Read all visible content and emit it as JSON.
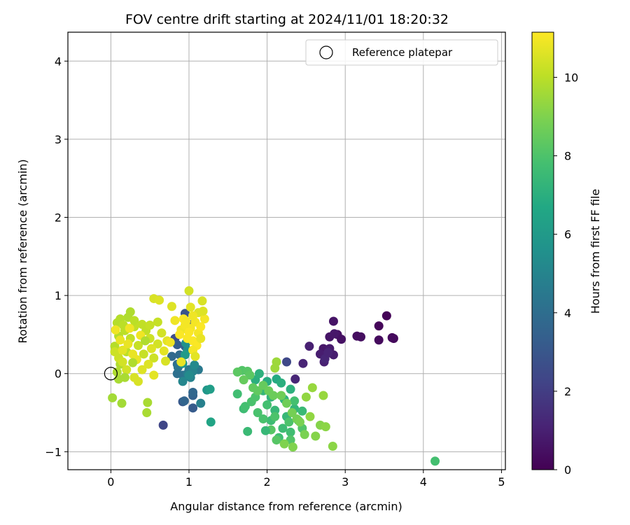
{
  "chart_data": {
    "type": "scatter",
    "title": "FOV centre drift starting at 2024/11/01 18:20:32",
    "xlabel": "Angular distance from reference (arcmin)",
    "ylabel": "Rotation from reference (arcmin)",
    "xlim": [
      -0.55,
      5.05
    ],
    "ylim": [
      -1.23,
      4.37
    ],
    "xticks": [
      0,
      1,
      2,
      3,
      4,
      5
    ],
    "yticks": [
      -1,
      0,
      1,
      2,
      3,
      4
    ],
    "xtick_labels": [
      "0",
      "1",
      "2",
      "3",
      "4",
      "5"
    ],
    "ytick_labels": [
      "−1",
      "0",
      "1",
      "2",
      "3",
      "4"
    ],
    "grid": true,
    "legend": {
      "position": "top-right",
      "entries": [
        "Reference platepar"
      ]
    },
    "reference_point": {
      "x": 0,
      "y": 0,
      "label": "Reference platepar"
    },
    "colorbar": {
      "label": "Hours from first FF file",
      "colormap": "viridis",
      "min": 0,
      "max": 11.15,
      "ticks": [
        0,
        2,
        4,
        6,
        8,
        10
      ],
      "tick_labels": [
        "0",
        "2",
        "4",
        "6",
        "8",
        "10"
      ]
    },
    "points": [
      {
        "x": 3.53,
        "y": 0.74,
        "c": 0.1
      },
      {
        "x": 3.43,
        "y": 0.61,
        "c": 0.2
      },
      {
        "x": 3.62,
        "y": 0.45,
        "c": 0.2
      },
      {
        "x": 3.43,
        "y": 0.43,
        "c": 0.3
      },
      {
        "x": 3.6,
        "y": 0.46,
        "c": 0.3
      },
      {
        "x": 3.15,
        "y": 0.48,
        "c": 0.4
      },
      {
        "x": 3.2,
        "y": 0.47,
        "c": 0.4
      },
      {
        "x": 2.95,
        "y": 0.44,
        "c": 0.5
      },
      {
        "x": 2.9,
        "y": 0.5,
        "c": 0.5
      },
      {
        "x": 2.85,
        "y": 0.67,
        "c": 0.6
      },
      {
        "x": 2.8,
        "y": 0.47,
        "c": 0.6
      },
      {
        "x": 2.86,
        "y": 0.51,
        "c": 0.7
      },
      {
        "x": 2.72,
        "y": 0.32,
        "c": 0.7
      },
      {
        "x": 2.8,
        "y": 0.32,
        "c": 0.8
      },
      {
        "x": 2.75,
        "y": 0.24,
        "c": 0.8
      },
      {
        "x": 2.68,
        "y": 0.25,
        "c": 0.9
      },
      {
        "x": 2.85,
        "y": 0.24,
        "c": 0.9
      },
      {
        "x": 2.73,
        "y": 0.15,
        "c": 1.0
      },
      {
        "x": 2.54,
        "y": 0.35,
        "c": 1.0
      },
      {
        "x": 2.46,
        "y": 0.13,
        "c": 1.1
      },
      {
        "x": 2.36,
        "y": -0.07,
        "c": 1.2
      },
      {
        "x": 2.74,
        "y": 0.19,
        "c": 1.2
      },
      {
        "x": 2.78,
        "y": 0.27,
        "c": 1.1
      },
      {
        "x": 0.67,
        "y": -0.66,
        "c": 2.3
      },
      {
        "x": 2.25,
        "y": 0.15,
        "c": 2.4
      },
      {
        "x": 0.82,
        "y": 0.45,
        "c": 2.6
      },
      {
        "x": 0.95,
        "y": 0.77,
        "c": 2.9
      },
      {
        "x": 1.0,
        "y": 0.63,
        "c": 3.0
      },
      {
        "x": 0.92,
        "y": -0.36,
        "c": 3.1
      },
      {
        "x": 1.05,
        "y": -0.44,
        "c": 3.2
      },
      {
        "x": 0.85,
        "y": 0.37,
        "c": 3.3
      },
      {
        "x": 0.95,
        "y": 0.35,
        "c": 3.4
      },
      {
        "x": 1.05,
        "y": -0.28,
        "c": 3.5
      },
      {
        "x": 0.94,
        "y": -0.35,
        "c": 3.6
      },
      {
        "x": 1.05,
        "y": -0.24,
        "c": 3.7
      },
      {
        "x": 0.78,
        "y": 0.22,
        "c": 3.8
      },
      {
        "x": 0.88,
        "y": 0.24,
        "c": 3.9
      },
      {
        "x": 0.85,
        "y": 0.12,
        "c": 4.0
      },
      {
        "x": 0.85,
        "y": 0.0,
        "c": 4.1
      },
      {
        "x": 0.92,
        "y": -0.02,
        "c": 4.2
      },
      {
        "x": 0.86,
        "y": 0.08,
        "c": 4.3
      },
      {
        "x": 1.0,
        "y": 0.05,
        "c": 4.4
      },
      {
        "x": 1.12,
        "y": 0.05,
        "c": 4.5
      },
      {
        "x": 0.98,
        "y": 0.0,
        "c": 4.6
      },
      {
        "x": 0.92,
        "y": 0.13,
        "c": 4.7
      },
      {
        "x": 1.15,
        "y": -0.38,
        "c": 4.8
      },
      {
        "x": 1.02,
        "y": -0.05,
        "c": 4.9
      },
      {
        "x": 1.05,
        "y": 0.03,
        "c": 5.0
      },
      {
        "x": 0.92,
        "y": -0.1,
        "c": 5.1
      },
      {
        "x": 1.07,
        "y": 0.11,
        "c": 5.2
      },
      {
        "x": 1.0,
        "y": -0.02,
        "c": 5.3
      },
      {
        "x": 0.98,
        "y": 0.3,
        "c": 5.5
      },
      {
        "x": 0.96,
        "y": 0.39,
        "c": 5.6
      },
      {
        "x": 1.23,
        "y": -0.21,
        "c": 5.8
      },
      {
        "x": 0.92,
        "y": 0.13,
        "c": 5.9
      },
      {
        "x": 0.95,
        "y": 0.24,
        "c": 6.0
      },
      {
        "x": 1.27,
        "y": -0.2,
        "c": 6.2
      },
      {
        "x": 1.28,
        "y": -0.62,
        "c": 6.5
      },
      {
        "x": 2.12,
        "y": -0.07,
        "c": 6.8
      },
      {
        "x": 2.0,
        "y": -0.1,
        "c": 6.9
      },
      {
        "x": 1.85,
        "y": -0.08,
        "c": 7.0
      },
      {
        "x": 2.18,
        "y": -0.12,
        "c": 7.0
      },
      {
        "x": 2.3,
        "y": -0.2,
        "c": 7.1
      },
      {
        "x": 1.9,
        "y": 0.0,
        "c": 7.1
      },
      {
        "x": 2.05,
        "y": -0.3,
        "c": 7.2
      },
      {
        "x": 2.22,
        "y": -0.33,
        "c": 7.2
      },
      {
        "x": 1.95,
        "y": -0.22,
        "c": 7.3
      },
      {
        "x": 2.35,
        "y": -0.45,
        "c": 7.3
      },
      {
        "x": 2.1,
        "y": -0.47,
        "c": 7.4
      },
      {
        "x": 2.25,
        "y": -0.55,
        "c": 7.4
      },
      {
        "x": 2.45,
        "y": -0.48,
        "c": 7.5
      },
      {
        "x": 2.4,
        "y": -0.6,
        "c": 7.5
      },
      {
        "x": 2.05,
        "y": -0.6,
        "c": 7.6
      },
      {
        "x": 2.2,
        "y": -0.7,
        "c": 7.6
      },
      {
        "x": 2.3,
        "y": -0.75,
        "c": 7.7
      },
      {
        "x": 2.15,
        "y": -0.82,
        "c": 7.7
      },
      {
        "x": 2.35,
        "y": -0.35,
        "c": 7.8
      },
      {
        "x": 2.0,
        "y": -0.4,
        "c": 7.8
      },
      {
        "x": 1.88,
        "y": -0.5,
        "c": 7.9
      },
      {
        "x": 1.95,
        "y": -0.58,
        "c": 7.9
      },
      {
        "x": 2.1,
        "y": -0.55,
        "c": 8.0
      },
      {
        "x": 2.28,
        "y": -0.62,
        "c": 8.0
      },
      {
        "x": 2.45,
        "y": -0.7,
        "c": 8.1
      },
      {
        "x": 2.3,
        "y": -0.85,
        "c": 8.1
      },
      {
        "x": 2.12,
        "y": -0.85,
        "c": 8.2
      },
      {
        "x": 2.05,
        "y": -0.72,
        "c": 8.2
      },
      {
        "x": 1.98,
        "y": -0.73,
        "c": 7.4
      },
      {
        "x": 1.75,
        "y": -0.74,
        "c": 7.5
      },
      {
        "x": 1.7,
        "y": -0.45,
        "c": 7.6
      },
      {
        "x": 1.62,
        "y": -0.26,
        "c": 7.7
      },
      {
        "x": 1.72,
        "y": -0.42,
        "c": 7.8
      },
      {
        "x": 1.8,
        "y": -0.36,
        "c": 7.9
      },
      {
        "x": 1.85,
        "y": -0.3,
        "c": 8.0
      },
      {
        "x": 1.68,
        "y": 0.04,
        "c": 8.1
      },
      {
        "x": 1.75,
        "y": 0.03,
        "c": 8.2
      },
      {
        "x": 1.62,
        "y": 0.02,
        "c": 8.3
      },
      {
        "x": 1.78,
        "y": -0.02,
        "c": 8.3
      },
      {
        "x": 1.82,
        "y": -0.18,
        "c": 8.4
      },
      {
        "x": 1.88,
        "y": -0.22,
        "c": 8.4
      },
      {
        "x": 1.7,
        "y": -0.08,
        "c": 8.5
      },
      {
        "x": 1.95,
        "y": -0.15,
        "c": 8.5
      },
      {
        "x": 2.02,
        "y": -0.22,
        "c": 8.6
      },
      {
        "x": 2.08,
        "y": -0.28,
        "c": 8.6
      },
      {
        "x": 2.18,
        "y": -0.28,
        "c": 8.7
      },
      {
        "x": 2.25,
        "y": -0.38,
        "c": 8.7
      },
      {
        "x": 2.32,
        "y": -0.5,
        "c": 8.8
      },
      {
        "x": 2.38,
        "y": -0.58,
        "c": 8.8
      },
      {
        "x": 2.42,
        "y": -0.62,
        "c": 8.9
      },
      {
        "x": 2.48,
        "y": -0.78,
        "c": 8.9
      },
      {
        "x": 2.33,
        "y": -0.94,
        "c": 9.0
      },
      {
        "x": 2.22,
        "y": -0.9,
        "c": 9.0
      },
      {
        "x": 2.62,
        "y": -0.8,
        "c": 9.1
      },
      {
        "x": 2.68,
        "y": -0.66,
        "c": 9.1
      },
      {
        "x": 2.75,
        "y": -0.68,
        "c": 9.2
      },
      {
        "x": 2.84,
        "y": -0.93,
        "c": 9.2
      },
      {
        "x": 2.55,
        "y": -0.55,
        "c": 9.3
      },
      {
        "x": 2.5,
        "y": -0.3,
        "c": 9.3
      },
      {
        "x": 2.58,
        "y": -0.18,
        "c": 9.4
      },
      {
        "x": 2.72,
        "y": -0.28,
        "c": 9.4
      },
      {
        "x": 2.12,
        "y": 0.15,
        "c": 9.5
      },
      {
        "x": 2.1,
        "y": 0.07,
        "c": 9.5
      },
      {
        "x": 4.15,
        "y": -1.12,
        "c": 7.8
      },
      {
        "x": 0.02,
        "y": -0.31,
        "c": 9.6
      },
      {
        "x": 0.14,
        "y": -0.38,
        "c": 9.6
      },
      {
        "x": 0.47,
        "y": -0.37,
        "c": 9.7
      },
      {
        "x": 0.46,
        "y": -0.5,
        "c": 9.7
      },
      {
        "x": 0.08,
        "y": 0.02,
        "c": 9.8
      },
      {
        "x": 0.12,
        "y": 0.12,
        "c": 9.8
      },
      {
        "x": 0.05,
        "y": 0.35,
        "c": 9.9
      },
      {
        "x": 0.1,
        "y": 0.48,
        "c": 9.9
      },
      {
        "x": 0.18,
        "y": 0.55,
        "c": 10.0
      },
      {
        "x": 0.2,
        "y": 0.28,
        "c": 10.0
      },
      {
        "x": 0.25,
        "y": 0.45,
        "c": 10.1
      },
      {
        "x": 0.3,
        "y": 0.6,
        "c": 10.1
      },
      {
        "x": 0.35,
        "y": 0.36,
        "c": 10.2
      },
      {
        "x": 0.42,
        "y": 0.25,
        "c": 10.2
      },
      {
        "x": 0.5,
        "y": 0.45,
        "c": 10.3
      },
      {
        "x": 0.55,
        "y": 0.2,
        "c": 10.3
      },
      {
        "x": 0.6,
        "y": 0.38,
        "c": 10.4
      },
      {
        "x": 0.65,
        "y": 0.52,
        "c": 10.4
      },
      {
        "x": 0.7,
        "y": 0.16,
        "c": 10.5
      },
      {
        "x": 0.55,
        "y": 0.96,
        "c": 10.5
      },
      {
        "x": 0.62,
        "y": 0.94,
        "c": 10.6
      },
      {
        "x": 0.78,
        "y": 0.86,
        "c": 10.6
      },
      {
        "x": 0.25,
        "y": 0.79,
        "c": 9.8
      },
      {
        "x": 0.22,
        "y": 0.72,
        "c": 9.8
      },
      {
        "x": 0.12,
        "y": 0.7,
        "c": 9.9
      },
      {
        "x": 0.08,
        "y": 0.65,
        "c": 9.9
      },
      {
        "x": 0.16,
        "y": 0.62,
        "c": 10.0
      },
      {
        "x": 0.3,
        "y": 0.68,
        "c": 10.0
      },
      {
        "x": 0.4,
        "y": 0.63,
        "c": 10.1
      },
      {
        "x": 0.45,
        "y": 0.55,
        "c": 10.1
      },
      {
        "x": 0.5,
        "y": 0.62,
        "c": 10.2
      },
      {
        "x": 0.6,
        "y": 0.66,
        "c": 10.2
      },
      {
        "x": 0.05,
        "y": 0.28,
        "c": 10.3
      },
      {
        "x": 0.1,
        "y": 0.2,
        "c": 10.3
      },
      {
        "x": 0.15,
        "y": 0.15,
        "c": 10.4
      },
      {
        "x": 0.2,
        "y": 0.05,
        "c": 10.4
      },
      {
        "x": 0.3,
        "y": -0.05,
        "c": 10.5
      },
      {
        "x": 0.35,
        "y": -0.1,
        "c": 10.5
      },
      {
        "x": 0.4,
        "y": 0.05,
        "c": 10.6
      },
      {
        "x": 0.48,
        "y": 0.12,
        "c": 10.6
      },
      {
        "x": 0.52,
        "y": 0.32,
        "c": 10.6
      },
      {
        "x": 0.68,
        "y": 0.29,
        "c": 10.7
      },
      {
        "x": 0.72,
        "y": 0.42,
        "c": 10.7
      },
      {
        "x": 0.55,
        "y": -0.02,
        "c": 10.7
      },
      {
        "x": 0.15,
        "y": 0.3,
        "c": 10.7
      },
      {
        "x": 0.22,
        "y": 0.38,
        "c": 10.8
      },
      {
        "x": 0.28,
        "y": 0.25,
        "c": 10.8
      },
      {
        "x": 0.33,
        "y": 0.18,
        "c": 10.8
      },
      {
        "x": 0.12,
        "y": 0.43,
        "c": 10.8
      },
      {
        "x": 0.06,
        "y": 0.56,
        "c": 10.9
      },
      {
        "x": 0.24,
        "y": 0.58,
        "c": 10.9
      },
      {
        "x": 0.38,
        "y": 0.49,
        "c": 10.9
      },
      {
        "x": 0.18,
        "y": -0.05,
        "c": 9.7
      },
      {
        "x": 0.1,
        "y": -0.07,
        "c": 9.7
      },
      {
        "x": 0.28,
        "y": 0.14,
        "c": 9.8
      },
      {
        "x": 0.44,
        "y": 0.42,
        "c": 9.8
      },
      {
        "x": 0.82,
        "y": 0.68,
        "c": 10.9
      },
      {
        "x": 0.9,
        "y": 0.56,
        "c": 10.9
      },
      {
        "x": 0.95,
        "y": 0.62,
        "c": 11.0
      },
      {
        "x": 1.02,
        "y": 0.58,
        "c": 11.0
      },
      {
        "x": 1.08,
        "y": 0.66,
        "c": 11.0
      },
      {
        "x": 1.12,
        "y": 0.52,
        "c": 11.0
      },
      {
        "x": 0.88,
        "y": 0.5,
        "c": 11.1
      },
      {
        "x": 0.98,
        "y": 0.45,
        "c": 11.1
      },
      {
        "x": 1.05,
        "y": 0.42,
        "c": 11.1
      },
      {
        "x": 1.1,
        "y": 0.36,
        "c": 11.1
      },
      {
        "x": 1.15,
        "y": 0.6,
        "c": 11.1
      },
      {
        "x": 1.2,
        "y": 0.7,
        "c": 11.0
      },
      {
        "x": 0.93,
        "y": 0.7,
        "c": 11.1
      },
      {
        "x": 1.0,
        "y": 0.53,
        "c": 11.1
      },
      {
        "x": 1.05,
        "y": 0.3,
        "c": 11.0
      },
      {
        "x": 0.76,
        "y": 0.4,
        "c": 10.9
      },
      {
        "x": 1.0,
        "y": 1.06,
        "c": 10.4
      },
      {
        "x": 1.17,
        "y": 0.93,
        "c": 10.5
      },
      {
        "x": 1.18,
        "y": 0.8,
        "c": 10.6
      },
      {
        "x": 1.12,
        "y": 0.78,
        "c": 10.6
      },
      {
        "x": 1.02,
        "y": 0.85,
        "c": 10.7
      },
      {
        "x": 0.9,
        "y": 0.15,
        "c": 10.8
      },
      {
        "x": 1.08,
        "y": 0.22,
        "c": 10.7
      },
      {
        "x": 1.15,
        "y": 0.45,
        "c": 10.8
      },
      {
        "x": 1.05,
        "y": 0.74,
        "c": 10.9
      },
      {
        "x": 0.96,
        "y": 0.67,
        "c": 11.0
      }
    ]
  }
}
